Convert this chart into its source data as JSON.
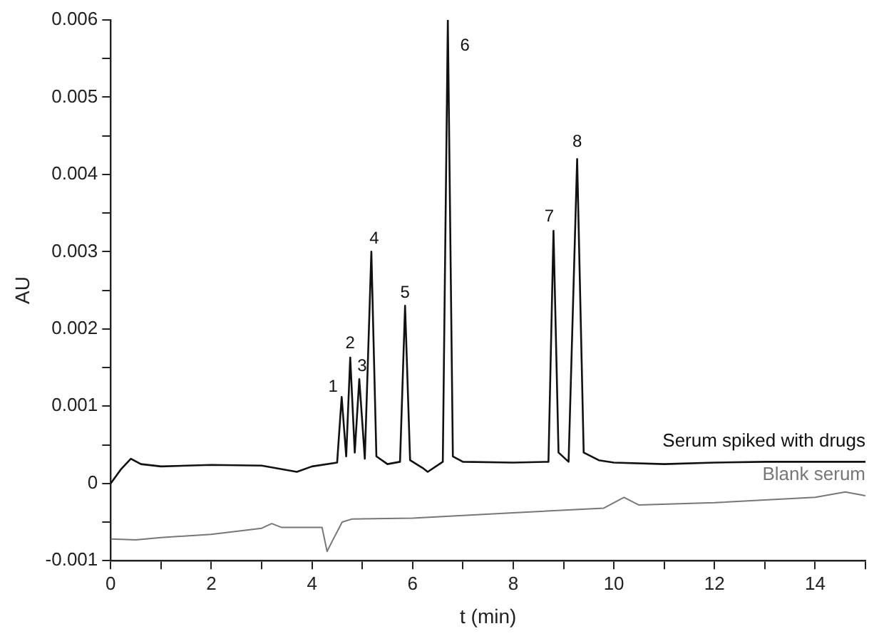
{
  "chart_data": {
    "type": "line",
    "xlabel": "t (min)",
    "ylabel": "AU",
    "xlim": [
      0,
      15
    ],
    "ylim": [
      -0.001,
      0.006
    ],
    "xticks": [
      0,
      {
        "value": 1,
        "label": null
      },
      2,
      {
        "value": 3,
        "label": null
      },
      4,
      {
        "value": 5,
        "label": null
      },
      6,
      {
        "value": 7,
        "label": null
      },
      8,
      {
        "value": 9,
        "label": null
      },
      10,
      {
        "value": 11,
        "label": null
      },
      12,
      {
        "value": 13,
        "label": null
      },
      14,
      {
        "value": 15,
        "label": null
      }
    ],
    "yticks": [
      -0.001,
      {
        "value": -0.0005,
        "label": null
      },
      0.0,
      {
        "value": 0.0005,
        "label": null
      },
      0.001,
      {
        "value": 0.0015,
        "label": null
      },
      0.002,
      {
        "value": 0.0025,
        "label": null
      },
      0.003,
      {
        "value": 0.0035,
        "label": null
      },
      0.004,
      {
        "value": 0.0045,
        "label": null
      },
      0.005,
      {
        "value": 0.0055,
        "label": null
      },
      0.006
    ],
    "grid": false,
    "legend": false,
    "marker": "none",
    "line_style": "solid",
    "series": [
      {
        "name": "Serum spiked with drugs",
        "color": "#111111",
        "x": [
          0,
          0.2,
          0.4,
          0.6,
          1,
          2,
          3,
          3.7,
          4.0,
          4.5,
          4.59,
          4.68,
          4.76,
          4.85,
          4.94,
          5.05,
          5.18,
          5.28,
          5.5,
          5.75,
          5.85,
          5.95,
          6.2,
          6.3,
          6.6,
          6.7,
          6.8,
          7,
          8,
          8.7,
          8.8,
          8.9,
          9.1,
          9.27,
          9.4,
          9.7,
          10,
          11,
          12,
          13,
          14,
          15
        ],
        "values": [
          0,
          0.00018,
          0.00032,
          0.00025,
          0.00022,
          0.00024,
          0.00023,
          0.00015,
          0.00022,
          0.00027,
          0.00112,
          0.00035,
          0.00163,
          0.0004,
          0.00135,
          0.00032,
          0.003,
          0.00035,
          0.00025,
          0.00028,
          0.0023,
          0.0003,
          0.0002,
          0.00015,
          0.00028,
          0.006,
          0.00035,
          0.00028,
          0.00027,
          0.00028,
          0.00327,
          0.0004,
          0.00028,
          0.0042,
          0.0004,
          0.0003,
          0.00027,
          0.00025,
          0.00027,
          0.00028,
          0.00028,
          0.00028
        ]
      },
      {
        "name": "Blank serum",
        "color": "#777777",
        "x": [
          0,
          0.5,
          1,
          2,
          3,
          3.2,
          3.4,
          4.2,
          4.3,
          4.4,
          4.6,
          4.8,
          6,
          8,
          9.8,
          10.2,
          10.5,
          12,
          14,
          14.6,
          15
        ],
        "values": [
          -0.00072,
          -0.00073,
          -0.0007,
          -0.00066,
          -0.00058,
          -0.00052,
          -0.00057,
          -0.00057,
          -0.00088,
          -0.00075,
          -0.0005,
          -0.00046,
          -0.00045,
          -0.00038,
          -0.00032,
          -0.00018,
          -0.00028,
          -0.00025,
          -0.00018,
          -0.00011,
          -0.00016
        ]
      }
    ],
    "annotations": [
      {
        "text": "1",
        "x": 4.59,
        "y": 0.00112
      },
      {
        "text": "2",
        "x": 4.76,
        "y": 0.00163
      },
      {
        "text": "3",
        "x": 4.94,
        "y": 0.00135
      },
      {
        "text": "4",
        "x": 5.18,
        "y": 0.003
      },
      {
        "text": "5",
        "x": 5.85,
        "y": 0.0023
      },
      {
        "text": "6",
        "x": 6.7,
        "y": 0.006
      },
      {
        "text": "7",
        "x": 8.8,
        "y": 0.00327
      },
      {
        "text": "8",
        "x": 9.27,
        "y": 0.0042
      }
    ]
  }
}
